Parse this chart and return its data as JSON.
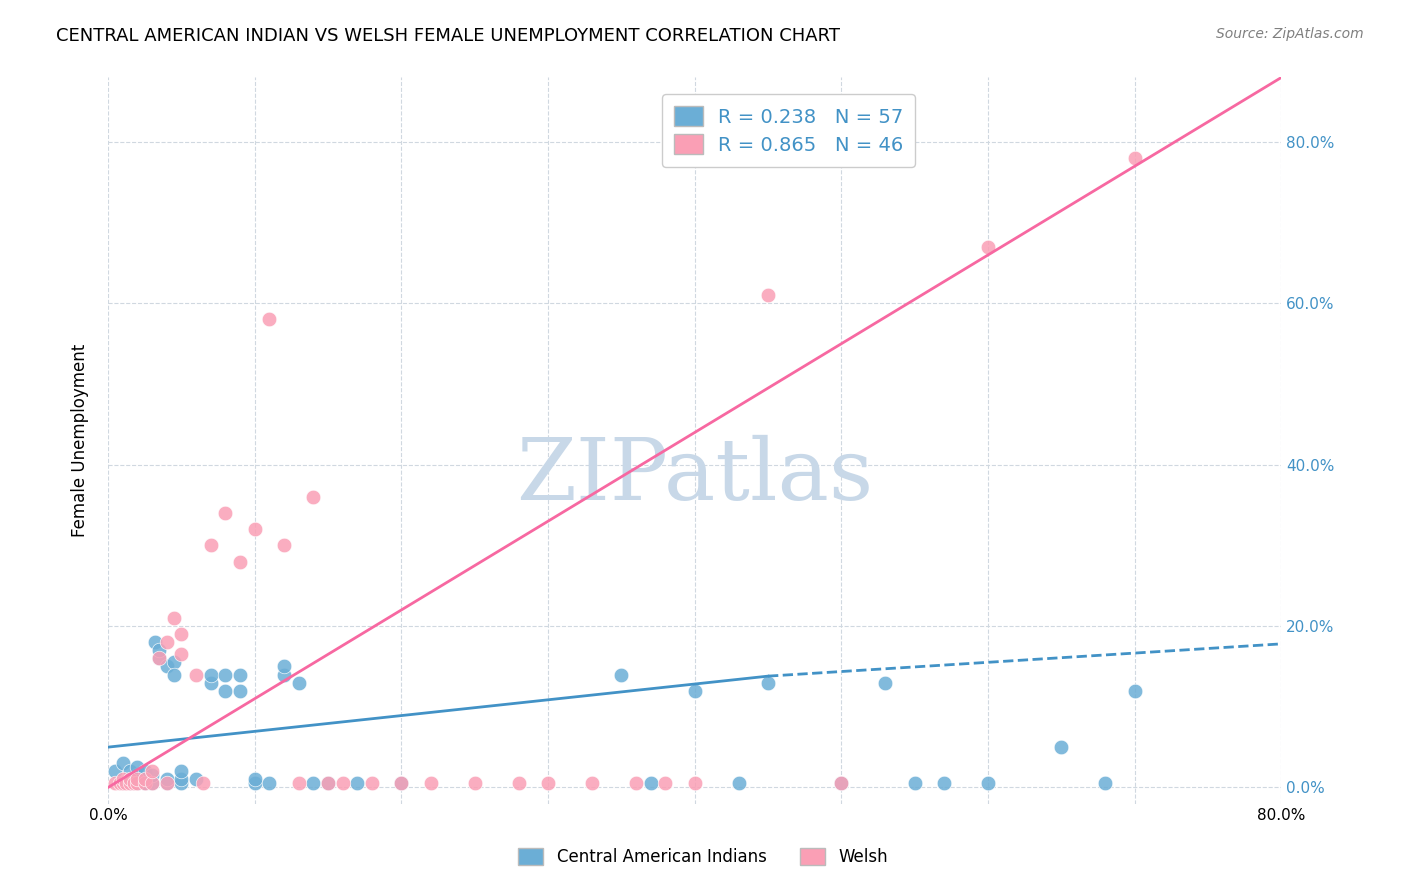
{
  "title": "CENTRAL AMERICAN INDIAN VS WELSH FEMALE UNEMPLOYMENT CORRELATION CHART",
  "source": "Source: ZipAtlas.com",
  "ylabel": "Female Unemployment",
  "ytick_labels": [
    "0.0%",
    "20.0%",
    "40.0%",
    "60.0%",
    "80.0%"
  ],
  "ytick_values": [
    0.0,
    0.2,
    0.4,
    0.6,
    0.8
  ],
  "xlim": [
    0.0,
    0.8
  ],
  "ylim": [
    -0.02,
    0.88
  ],
  "legend_label1": "Central American Indians",
  "legend_label2": "Welsh",
  "R1": 0.238,
  "N1": 57,
  "R2": 0.865,
  "N2": 46,
  "color_blue": "#6baed6",
  "color_pink": "#fa9fb5",
  "color_blue_dark": "#4292c6",
  "color_pink_dark": "#f768a1",
  "color_text_blue": "#4292c6",
  "watermark_color": "#c8d8e8",
  "background_color": "#ffffff",
  "grid_color": "#d0d8e0",
  "blue_scatter_x": [
    0.005,
    0.01,
    0.01,
    0.015,
    0.015,
    0.015,
    0.018,
    0.02,
    0.02,
    0.02,
    0.02,
    0.025,
    0.025,
    0.025,
    0.03,
    0.03,
    0.032,
    0.035,
    0.035,
    0.04,
    0.04,
    0.04,
    0.045,
    0.045,
    0.05,
    0.05,
    0.05,
    0.06,
    0.07,
    0.07,
    0.08,
    0.08,
    0.09,
    0.09,
    0.1,
    0.1,
    0.11,
    0.12,
    0.12,
    0.13,
    0.14,
    0.15,
    0.17,
    0.2,
    0.35,
    0.37,
    0.4,
    0.43,
    0.45,
    0.5,
    0.53,
    0.55,
    0.57,
    0.6,
    0.65,
    0.68,
    0.7
  ],
  "blue_scatter_y": [
    0.02,
    0.005,
    0.03,
    0.005,
    0.01,
    0.02,
    0.005,
    0.005,
    0.01,
    0.015,
    0.025,
    0.005,
    0.01,
    0.02,
    0.005,
    0.015,
    0.18,
    0.16,
    0.17,
    0.005,
    0.01,
    0.15,
    0.155,
    0.14,
    0.005,
    0.01,
    0.02,
    0.01,
    0.13,
    0.14,
    0.12,
    0.14,
    0.12,
    0.14,
    0.005,
    0.01,
    0.005,
    0.14,
    0.15,
    0.13,
    0.005,
    0.005,
    0.005,
    0.005,
    0.14,
    0.005,
    0.12,
    0.005,
    0.13,
    0.005,
    0.13,
    0.005,
    0.005,
    0.005,
    0.05,
    0.005,
    0.12
  ],
  "pink_scatter_x": [
    0.005,
    0.008,
    0.01,
    0.01,
    0.012,
    0.015,
    0.015,
    0.018,
    0.02,
    0.02,
    0.025,
    0.025,
    0.03,
    0.03,
    0.035,
    0.04,
    0.04,
    0.045,
    0.05,
    0.05,
    0.06,
    0.065,
    0.07,
    0.08,
    0.09,
    0.1,
    0.11,
    0.12,
    0.13,
    0.14,
    0.15,
    0.16,
    0.18,
    0.2,
    0.22,
    0.25,
    0.28,
    0.3,
    0.33,
    0.36,
    0.38,
    0.4,
    0.45,
    0.5,
    0.6,
    0.7
  ],
  "pink_scatter_y": [
    0.005,
    0.005,
    0.005,
    0.01,
    0.005,
    0.005,
    0.01,
    0.005,
    0.005,
    0.01,
    0.005,
    0.01,
    0.005,
    0.02,
    0.16,
    0.005,
    0.18,
    0.21,
    0.165,
    0.19,
    0.14,
    0.005,
    0.3,
    0.34,
    0.28,
    0.32,
    0.58,
    0.3,
    0.005,
    0.36,
    0.005,
    0.005,
    0.005,
    0.005,
    0.005,
    0.005,
    0.005,
    0.005,
    0.005,
    0.005,
    0.005,
    0.005,
    0.61,
    0.005,
    0.67,
    0.78
  ],
  "pink_line_x": [
    0.0,
    0.8
  ],
  "pink_line_y": [
    0.0,
    0.88
  ],
  "x_grid_ticks": [
    0.0,
    0.1,
    0.2,
    0.3,
    0.4,
    0.5,
    0.6,
    0.7,
    0.8
  ]
}
